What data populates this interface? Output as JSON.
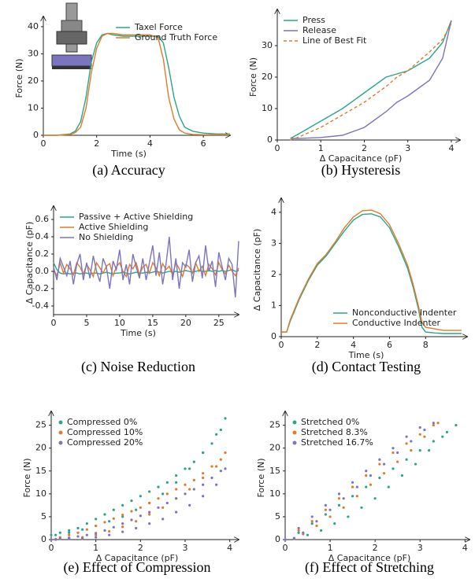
{
  "chart_data": [
    {
      "type": "line",
      "caption": "(a) Accuracy",
      "xlabel": "Time (s)",
      "ylabel": "Force (N)",
      "legend": "upper right",
      "xlim": [
        0,
        7
      ],
      "xticks": [
        0,
        2,
        4,
        6
      ],
      "ylim": [
        0,
        42
      ],
      "yticks": [
        0,
        10,
        20,
        30,
        40
      ],
      "x": [
        0,
        0.5,
        1,
        1.2,
        1.4,
        1.6,
        1.8,
        2,
        2.2,
        2.4,
        2.6,
        3,
        3.5,
        4,
        4.3,
        4.5,
        4.7,
        4.9,
        5.1,
        5.3,
        5.6,
        6,
        6.5,
        7
      ],
      "series": [
        {
          "name": "Taxel Force",
          "color": "#2aa58a",
          "values": [
            0,
            0,
            0.5,
            1.5,
            5,
            14,
            27,
            34,
            37,
            37.5,
            37,
            36.5,
            36.5,
            36.5,
            36.5,
            34,
            25,
            14,
            7,
            3,
            1.5,
            0.8,
            0.5,
            0.5
          ]
        },
        {
          "name": "Ground Truth Force",
          "color": "#e07b2a",
          "values": [
            0,
            0,
            0.3,
            1,
            3,
            10,
            23,
            32,
            36.5,
            37.5,
            37.5,
            37,
            37,
            37,
            36,
            28,
            14,
            6,
            2,
            0.8,
            0.3,
            0.2,
            0.2,
            0.2
          ]
        }
      ]
    },
    {
      "type": "line",
      "caption": "(b) Hysteresis",
      "xlabel": "Δ Capacitance (pF)",
      "ylabel": "Force (N)",
      "legend": "upper left",
      "xlim": [
        0,
        4.2
      ],
      "xticks": [
        0,
        1,
        2,
        3,
        4
      ],
      "ylim": [
        0,
        40
      ],
      "yticks": [
        0,
        10,
        20,
        30
      ],
      "x": [
        0.3,
        0.5,
        1,
        1.5,
        2,
        2.5,
        2.75,
        3,
        3.5,
        3.8,
        4.0
      ],
      "series": [
        {
          "name": "Press",
          "color": "#2aa58a",
          "values": [
            0.5,
            2,
            6,
            10,
            15,
            20,
            21,
            22,
            26,
            31,
            38
          ]
        },
        {
          "name": "Release",
          "color": "#7b74c0",
          "values": [
            0.5,
            0.5,
            0.8,
            1.5,
            4,
            9,
            12,
            14,
            19,
            26,
            38
          ]
        },
        {
          "name": "Line of Best Fit",
          "color": "#e07b2a",
          "dashed": true,
          "values": [
            0,
            1,
            4,
            8,
            12,
            17,
            20,
            22,
            28,
            32,
            37
          ]
        }
      ]
    },
    {
      "type": "line",
      "caption": "(c) Noise Reduction",
      "xlabel": "Time (s)",
      "ylabel": "Δ Capacitance (pF)",
      "legend": "upper left",
      "xlim": [
        0,
        28
      ],
      "xticks": [
        0,
        5,
        10,
        15,
        20,
        25
      ],
      "ylim": [
        -0.5,
        0.7
      ],
      "yticks": [
        -0.4,
        -0.2,
        {
          "value": 0,
          "label": "0.0"
        },
        0.2,
        0.4,
        0.6
      ],
      "x": [
        0,
        0.5,
        1,
        1.5,
        2,
        2.5,
        3,
        3.5,
        4,
        4.5,
        5,
        5.5,
        6,
        6.5,
        7,
        7.5,
        8,
        8.5,
        9,
        9.5,
        10,
        10.5,
        11,
        11.5,
        12,
        12.5,
        13,
        13.5,
        14,
        14.5,
        15,
        15.5,
        16,
        16.5,
        17,
        17.5,
        18,
        18.5,
        19,
        19.5,
        20,
        20.5,
        21,
        21.5,
        22,
        22.5,
        23,
        23.5,
        24,
        24.5,
        25,
        25.5,
        26,
        26.5,
        27,
        27.5,
        28
      ],
      "series": [
        {
          "name": "Passive + Active Shielding",
          "color": "#2aa58a",
          "values": [
            0.1,
            0.02,
            -0.02,
            -0.03,
            -0.02,
            -0.03,
            -0.02,
            -0.02,
            -0.03,
            -0.02,
            -0.02,
            -0.03,
            -0.02,
            -0.02,
            -0.03,
            -0.02,
            -0.01,
            -0.02,
            -0.03,
            -0.02,
            -0.02,
            -0.01,
            -0.02,
            -0.03,
            -0.02,
            -0.01,
            -0.02,
            -0.02,
            -0.01,
            -0.02,
            -0.01,
            0.0,
            -0.01,
            -0.02,
            -0.01,
            0.0,
            -0.01,
            0.0,
            -0.01,
            0.0,
            0.01,
            0.0,
            -0.01,
            0.0,
            0.01,
            0.0,
            0.0,
            0.01,
            0.0,
            0.01,
            0.0,
            0.01,
            0.0,
            0.01,
            0.02,
            0.0,
            0.01
          ]
        },
        {
          "name": "Active Shielding",
          "color": "#e07b2a",
          "values": [
            0.02,
            -0.05,
            0.1,
            -0.02,
            0.08,
            0.03,
            -0.04,
            0.1,
            0.05,
            -0.03,
            0.08,
            0.02,
            -0.06,
            0.1,
            0.04,
            -0.02,
            0.06,
            0.09,
            -0.05,
            0.05,
            0.1,
            0.0,
            -0.06,
            0.08,
            0.03,
            0.1,
            -0.04,
            0.05,
            0.08,
            -0.02,
            0.1,
            0.04,
            -0.05,
            0.09,
            0.02,
            0.06,
            -0.04,
            0.1,
            0.03,
            -0.06,
            0.08,
            0.05,
            -0.02,
            0.1,
            0.0,
            0.06,
            -0.05,
            0.08,
            0.03,
            -0.04,
            0.1,
            0.02,
            -0.03,
            0.07,
            0.0,
            -0.05,
            0.04
          ]
        },
        {
          "name": "No Shielding",
          "color": "#7b74c0",
          "values": [
            0.05,
            -0.1,
            0.15,
            0.05,
            -0.05,
            0.12,
            -0.15,
            0.08,
            0.2,
            -0.1,
            0.1,
            -0.08,
            0.18,
            0.0,
            -0.12,
            0.15,
            0.05,
            -0.2,
            0.12,
            0.02,
            0.25,
            -0.1,
            0.08,
            -0.15,
            0.2,
            0.05,
            -0.08,
            0.15,
            -0.1,
            0.1,
            0.3,
            -0.05,
            0.22,
            -0.15,
            0.08,
            0.4,
            -0.1,
            0.15,
            -0.2,
            0.1,
            0.05,
            0.25,
            -0.12,
            0.1,
            0.18,
            -0.08,
            0.3,
            0.0,
            0.12,
            -0.18,
            0.22,
            0.05,
            -0.1,
            0.15,
            0.08,
            -0.3,
            0.35
          ]
        }
      ]
    },
    {
      "type": "line",
      "caption": "(d) Contact Testing",
      "xlabel": "Time (s)",
      "ylabel": "Δ Capacitance (pF)",
      "legend": "lower right",
      "xlim": [
        0,
        10.3
      ],
      "xticks": [
        0,
        2,
        4,
        6,
        8
      ],
      "ylim": [
        0,
        4.3
      ],
      "yticks": [
        0,
        1,
        2,
        3,
        4
      ],
      "x": [
        0,
        0.3,
        0.5,
        1,
        1.5,
        2,
        2.5,
        3,
        3.5,
        4,
        4.5,
        5,
        5.5,
        6,
        6.5,
        7,
        7.3,
        7.6,
        7.8,
        8,
        8.5,
        9,
        10
      ],
      "series": [
        {
          "name": "Nonconductive Indenter",
          "color": "#2aa58a",
          "values": [
            0.15,
            0.15,
            0.5,
            1.2,
            1.8,
            2.3,
            2.6,
            3.0,
            3.4,
            3.75,
            3.93,
            3.95,
            3.85,
            3.5,
            2.9,
            2.2,
            1.6,
            0.9,
            0.3,
            0.15,
            0.12,
            0.1,
            0.1
          ]
        },
        {
          "name": "Conductive Indenter",
          "color": "#e07b2a",
          "values": [
            0.15,
            0.15,
            0.55,
            1.25,
            1.85,
            2.35,
            2.65,
            3.05,
            3.5,
            3.85,
            4.05,
            4.07,
            3.95,
            3.6,
            3.0,
            2.3,
            1.7,
            1.0,
            0.45,
            0.3,
            0.25,
            0.2,
            0.2
          ]
        }
      ]
    },
    {
      "type": "scatter",
      "caption": "(e) Effect of Compression",
      "xlabel": "Δ Capacitance (pF)",
      "ylabel": "Force (N)",
      "legend": "upper left",
      "xlim": [
        0,
        4.2
      ],
      "xticks": [
        0,
        1,
        2,
        3,
        4
      ],
      "ylim": [
        0,
        27
      ],
      "yticks": [
        0,
        5,
        10,
        15,
        20,
        25
      ],
      "x": [
        0,
        0.2,
        0.4,
        0.6,
        0.8,
        1,
        1.2,
        1.4,
        1.6,
        1.8,
        2,
        2.2,
        2.4,
        2.6,
        2.8,
        3,
        3.2,
        3.4,
        3.6,
        3.8,
        3.9,
        3.7,
        3.4,
        3.1,
        2.8,
        2.5,
        2.2,
        1.9,
        1.6,
        1.3,
        1,
        0.7,
        0.4,
        0.1
      ],
      "series": [
        {
          "name": "Compressed 0%",
          "color": "#2aa58a",
          "values": [
            1,
            1.5,
            2,
            2.5,
            3.5,
            4.5,
            5.5,
            6.5,
            7.5,
            8.5,
            9.5,
            10.5,
            11.5,
            12.5,
            14,
            15.5,
            17,
            19,
            21,
            24,
            26.5,
            23,
            19,
            15.5,
            12.5,
            10,
            8,
            6.5,
            5,
            4,
            3,
            2.2,
            1.5,
            1
          ]
        },
        {
          "name": "Compressed 10%",
          "color": "#e07b2a",
          "values": [
            0,
            0.5,
            1,
            1.5,
            2.2,
            3,
            3.8,
            4.6,
            5.4,
            6.2,
            7,
            8,
            9,
            10,
            11,
            12,
            13,
            14.5,
            16,
            17.5,
            19,
            16,
            13.5,
            11,
            9,
            7,
            5.5,
            4,
            2.8,
            1.8,
            1,
            0.5,
            0.2,
            0.1
          ]
        },
        {
          "name": "Compressed 20%",
          "color": "#7b74c0",
          "values": [
            0,
            0.2,
            0.4,
            0.7,
            1,
            1.4,
            2,
            2.7,
            3.5,
            4.3,
            5.2,
            6,
            7,
            8,
            9,
            10,
            11,
            12,
            13.5,
            15,
            15.5,
            12,
            9.5,
            7.5,
            6,
            4.5,
            3.5,
            2.5,
            1.7,
            1,
            0.5,
            0.2,
            0.1,
            0
          ]
        }
      ]
    },
    {
      "type": "scatter",
      "caption": "(f) Effect of Stretching",
      "xlabel": "Δ Capacitance (pF)",
      "ylabel": "Force (N)",
      "legend": "upper left",
      "xlim": [
        0,
        4.1
      ],
      "xticks": [
        0,
        1,
        2,
        3,
        4
      ],
      "ylim": [
        0,
        27
      ],
      "yticks": [
        0,
        5,
        10,
        15,
        20,
        25
      ],
      "series": [
        {
          "name": "Stretched 0%",
          "color": "#2aa58a",
          "x": [
            0,
            0.3,
            0.6,
            0.9,
            1.2,
            1.5,
            1.8,
            2.1,
            2.4,
            2.7,
            3.0,
            3.3,
            3.6,
            3.8,
            3.5,
            3.2,
            2.9,
            2.6,
            2.3,
            2.0,
            1.7,
            1.4,
            1.1,
            0.8,
            0.5,
            0.2
          ],
          "values": [
            0,
            1.5,
            3.5,
            5.5,
            7.5,
            9.5,
            11.5,
            13.5,
            15.5,
            17.5,
            19.5,
            21.5,
            23.5,
            25,
            22.5,
            19.5,
            16.5,
            14,
            11.5,
            9,
            7,
            5,
            3.5,
            2,
            1,
            0.2
          ]
        },
        {
          "name": "Stretched 8.3%",
          "color": "#e07b2a",
          "x": [
            0,
            0.3,
            0.6,
            0.9,
            1.2,
            1.5,
            1.8,
            2.1,
            2.4,
            2.7,
            3.0,
            3.3,
            3.4,
            3.1,
            2.8,
            2.5,
            2.2,
            1.9,
            1.6,
            1.3,
            1.0,
            0.7,
            0.4,
            0.2
          ],
          "values": [
            0,
            2,
            4,
            6.5,
            9,
            11.5,
            14,
            16.5,
            19,
            21,
            23,
            25,
            25.5,
            22.5,
            19.5,
            17,
            14.5,
            12,
            9.5,
            7,
            5,
            3,
            1.2,
            0.3
          ]
        },
        {
          "name": "Stretched 16.7%",
          "color": "#7b74c0",
          "x": [
            0,
            0.3,
            0.6,
            0.9,
            1.2,
            1.5,
            1.8,
            2.1,
            2.4,
            2.7,
            3.0,
            3.3,
            3.1,
            2.8,
            2.5,
            2.2,
            1.9,
            1.6,
            1.3,
            1.0,
            0.7,
            0.4,
            0.2
          ],
          "values": [
            0,
            2.5,
            5,
            7.5,
            10,
            12.5,
            15,
            17.5,
            20,
            22.5,
            24.5,
            25.5,
            24,
            21.5,
            19,
            16.5,
            14,
            11.5,
            9,
            6.5,
            4,
            1.5,
            0.3
          ]
        }
      ]
    }
  ]
}
